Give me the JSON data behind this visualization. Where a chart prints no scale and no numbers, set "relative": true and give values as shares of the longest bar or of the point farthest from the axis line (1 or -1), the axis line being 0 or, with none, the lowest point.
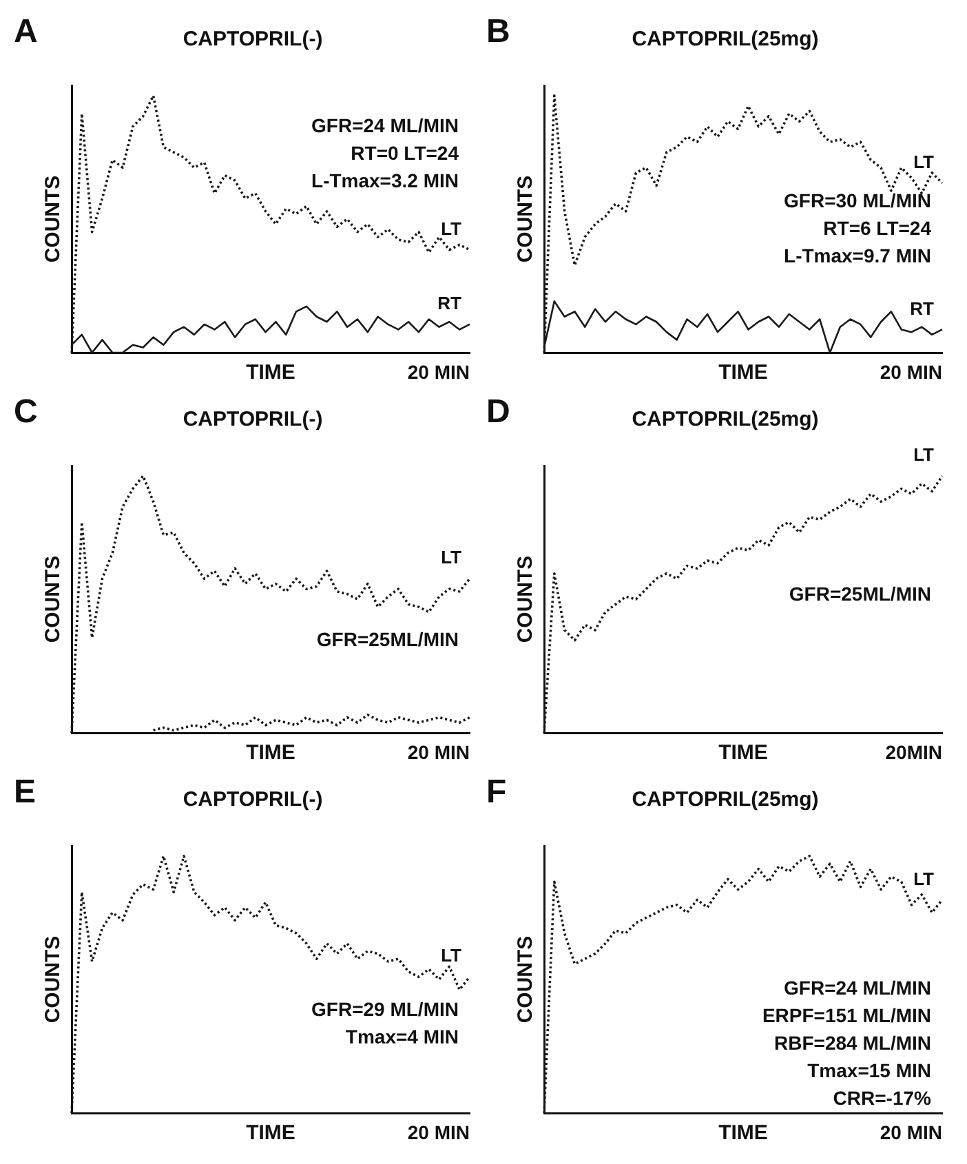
{
  "chart_data": [
    {
      "type": "line",
      "relative": true,
      "title": "CAPTOPRIL(-)",
      "xlabel": "TIME",
      "ylabel": "COUNTS",
      "annotations": [
        "A",
        "GFR=24 ML/MIN",
        "RT=0 LT=24",
        "L-Tmax=3.2 MIN",
        "20 MIN"
      ],
      "categories": [
        null,
        null,
        null,
        null,
        null,
        null,
        null,
        null,
        null,
        null,
        null,
        null,
        null,
        null,
        null,
        null,
        null,
        null,
        null,
        null,
        null,
        null,
        null,
        null,
        null,
        null,
        null,
        null,
        null,
        null,
        null,
        null,
        null,
        null,
        null,
        null,
        null,
        null,
        null,
        null
      ],
      "grid": false,
      "legend": false,
      "series": [
        {
          "name": "LT",
          "color": "#1a1a1a",
          "line_style": "dotted",
          "values": [
            0,
            0.93,
            0.47,
            0.6,
            0.75,
            0.72,
            0.88,
            0.92,
            1.0,
            0.8,
            0.78,
            0.76,
            0.72,
            0.74,
            0.62,
            0.69,
            0.67,
            0.6,
            0.62,
            0.55,
            0.5,
            0.56,
            0.54,
            0.57,
            0.5,
            0.55,
            0.49,
            0.52,
            0.47,
            0.5,
            0.45,
            0.48,
            0.44,
            0.43,
            0.47,
            0.39,
            0.45,
            0.4,
            0.42,
            0.4
          ]
        },
        {
          "name": "RT",
          "color": "#1a1a1a",
          "line_style": "solid",
          "values": [
            0.03,
            0.07,
            0.0,
            0.05,
            0.0,
            0.0,
            0.03,
            0.02,
            0.06,
            0.03,
            0.08,
            0.1,
            0.07,
            0.11,
            0.09,
            0.12,
            0.06,
            0.11,
            0.13,
            0.08,
            0.12,
            0.07,
            0.16,
            0.18,
            0.14,
            0.12,
            0.16,
            0.1,
            0.13,
            0.08,
            0.14,
            0.11,
            0.09,
            0.12,
            0.08,
            0.13,
            0.1,
            0.12,
            0.09,
            0.11
          ]
        }
      ]
    },
    {
      "type": "line",
      "relative": true,
      "title": "CAPTOPRIL(25mg)",
      "xlabel": "TIME",
      "ylabel": "COUNTS",
      "annotations": [
        "B",
        "GFR=30 ML/MIN",
        "RT=6 LT=24",
        "L-Tmax=9.7 MIN",
        "20 MIN"
      ],
      "categories": [
        null,
        null,
        null,
        null,
        null,
        null,
        null,
        null,
        null,
        null,
        null,
        null,
        null,
        null,
        null,
        null,
        null,
        null,
        null,
        null,
        null,
        null,
        null,
        null,
        null,
        null,
        null,
        null,
        null,
        null,
        null,
        null,
        null,
        null,
        null,
        null,
        null,
        null,
        null,
        null
      ],
      "grid": false,
      "legend": false,
      "series": [
        {
          "name": "LT",
          "color": "#1a1a1a",
          "line_style": "dotted",
          "values": [
            0,
            1.0,
            0.55,
            0.34,
            0.45,
            0.5,
            0.53,
            0.58,
            0.55,
            0.7,
            0.72,
            0.65,
            0.78,
            0.8,
            0.84,
            0.82,
            0.88,
            0.84,
            0.9,
            0.87,
            0.96,
            0.88,
            0.92,
            0.85,
            0.93,
            0.9,
            0.94,
            0.86,
            0.82,
            0.83,
            0.8,
            0.82,
            0.75,
            0.72,
            0.63,
            0.72,
            0.68,
            0.62,
            0.7,
            0.66
          ]
        },
        {
          "name": "RT",
          "color": "#1a1a1a",
          "line_style": "solid",
          "values": [
            0.02,
            0.2,
            0.14,
            0.16,
            0.1,
            0.17,
            0.12,
            0.16,
            0.13,
            0.11,
            0.14,
            0.12,
            0.08,
            0.05,
            0.13,
            0.1,
            0.15,
            0.08,
            0.12,
            0.16,
            0.09,
            0.12,
            0.14,
            0.1,
            0.15,
            0.12,
            0.09,
            0.13,
            0.0,
            0.1,
            0.13,
            0.11,
            0.06,
            0.12,
            0.16,
            0.09,
            0.08,
            0.1,
            0.07,
            0.09
          ]
        }
      ]
    },
    {
      "type": "line",
      "relative": true,
      "title": "CAPTOPRIL(-)",
      "xlabel": "TIME",
      "ylabel": "COUNTS",
      "annotations": [
        "C",
        "GFR=25ML/MIN",
        "20 MIN"
      ],
      "categories": [
        null,
        null,
        null,
        null,
        null,
        null,
        null,
        null,
        null,
        null,
        null,
        null,
        null,
        null,
        null,
        null,
        null,
        null,
        null,
        null,
        null,
        null,
        null,
        null,
        null,
        null,
        null,
        null,
        null,
        null,
        null,
        null,
        null,
        null,
        null,
        null,
        null,
        null,
        null,
        null
      ],
      "grid": false,
      "legend": false,
      "series": [
        {
          "name": "LT",
          "color": "#1a1a1a",
          "line_style": "dotted",
          "values": [
            0,
            0.82,
            0.37,
            0.6,
            0.7,
            0.88,
            0.95,
            1.0,
            0.9,
            0.77,
            0.78,
            0.7,
            0.66,
            0.6,
            0.63,
            0.57,
            0.64,
            0.58,
            0.62,
            0.56,
            0.58,
            0.55,
            0.6,
            0.56,
            0.57,
            0.63,
            0.55,
            0.54,
            0.52,
            0.58,
            0.49,
            0.53,
            0.56,
            0.5,
            0.49,
            0.47,
            0.53,
            0.56,
            0.55,
            0.6
          ]
        },
        {
          "color": "#1a1a1a",
          "line_style": "dotted",
          "values": [
            null,
            null,
            null,
            null,
            null,
            null,
            null,
            null,
            0.01,
            0.02,
            0.01,
            0.02,
            0.03,
            0.02,
            0.05,
            0.02,
            0.04,
            0.03,
            0.06,
            0.03,
            0.05,
            0.04,
            0.03,
            0.06,
            0.04,
            0.05,
            0.03,
            0.06,
            0.04,
            0.07,
            0.05,
            0.04,
            0.06,
            0.05,
            0.04,
            0.05,
            0.06,
            0.05,
            0.04,
            0.06
          ]
        }
      ]
    },
    {
      "type": "line",
      "relative": true,
      "title": "CAPTOPRIL(25mg)",
      "xlabel": "TIME",
      "ylabel": "COUNTS",
      "annotations": [
        "D",
        "GFR=25ML/MIN",
        "20MIN"
      ],
      "categories": [
        null,
        null,
        null,
        null,
        null,
        null,
        null,
        null,
        null,
        null,
        null,
        null,
        null,
        null,
        null,
        null,
        null,
        null,
        null,
        null,
        null,
        null,
        null,
        null,
        null,
        null,
        null,
        null,
        null,
        null,
        null,
        null,
        null,
        null,
        null,
        null,
        null,
        null,
        null,
        null
      ],
      "grid": false,
      "legend": false,
      "series": [
        {
          "name": "LT",
          "color": "#1a1a1a",
          "line_style": "dotted",
          "values": [
            0,
            0.62,
            0.4,
            0.36,
            0.42,
            0.4,
            0.47,
            0.5,
            0.53,
            0.52,
            0.56,
            0.6,
            0.62,
            0.6,
            0.65,
            0.64,
            0.67,
            0.66,
            0.7,
            0.72,
            0.71,
            0.75,
            0.73,
            0.8,
            0.82,
            0.78,
            0.84,
            0.83,
            0.86,
            0.88,
            0.91,
            0.88,
            0.93,
            0.9,
            0.92,
            0.95,
            0.93,
            0.97,
            0.94,
            1.0
          ]
        }
      ]
    },
    {
      "type": "line",
      "relative": true,
      "title": "CAPTOPRIL(-)",
      "xlabel": "TIME",
      "ylabel": "COUNTS",
      "annotations": [
        "E",
        "GFR=29 ML/MIN",
        "Tmax=4 MIN",
        "20 MIN"
      ],
      "categories": [
        null,
        null,
        null,
        null,
        null,
        null,
        null,
        null,
        null,
        null,
        null,
        null,
        null,
        null,
        null,
        null,
        null,
        null,
        null,
        null,
        null,
        null,
        null,
        null,
        null,
        null,
        null,
        null,
        null,
        null,
        null,
        null,
        null,
        null,
        null,
        null,
        null,
        null,
        null,
        null
      ],
      "grid": false,
      "legend": false,
      "series": [
        {
          "name": "LT",
          "color": "#1a1a1a",
          "line_style": "dotted",
          "values": [
            0,
            0.86,
            0.59,
            0.72,
            0.78,
            0.75,
            0.85,
            0.89,
            0.87,
            1.0,
            0.86,
            1.0,
            0.86,
            0.82,
            0.77,
            0.8,
            0.75,
            0.8,
            0.76,
            0.82,
            0.73,
            0.72,
            0.7,
            0.66,
            0.6,
            0.66,
            0.62,
            0.66,
            0.6,
            0.63,
            0.62,
            0.59,
            0.6,
            0.55,
            0.53,
            0.56,
            0.52,
            0.57,
            0.48,
            0.53
          ]
        }
      ]
    },
    {
      "type": "line",
      "relative": true,
      "title": "CAPTOPRIL(25mg)",
      "xlabel": "TIME",
      "ylabel": "COUNTS",
      "annotations": [
        "F",
        "GFR=24 ML/MIN",
        "ERPF=151 ML/MIN",
        "RBF=284 ML/MIN",
        "Tmax=15 MIN",
        "CRR=-17%",
        "20 MIN"
      ],
      "categories": [
        null,
        null,
        null,
        null,
        null,
        null,
        null,
        null,
        null,
        null,
        null,
        null,
        null,
        null,
        null,
        null,
        null,
        null,
        null,
        null,
        null,
        null,
        null,
        null,
        null,
        null,
        null,
        null,
        null,
        null,
        null,
        null,
        null,
        null,
        null,
        null,
        null,
        null,
        null,
        null
      ],
      "grid": false,
      "legend": false,
      "series": [
        {
          "name": "LT",
          "color": "#1a1a1a",
          "line_style": "dotted",
          "values": [
            0,
            0.9,
            0.7,
            0.58,
            0.6,
            0.62,
            0.66,
            0.71,
            0.7,
            0.74,
            0.76,
            0.78,
            0.8,
            0.81,
            0.78,
            0.83,
            0.8,
            0.86,
            0.91,
            0.87,
            0.9,
            0.95,
            0.9,
            0.96,
            0.94,
            0.98,
            1.0,
            0.92,
            0.97,
            0.9,
            0.98,
            0.88,
            0.95,
            0.87,
            0.92,
            0.9,
            0.81,
            0.85,
            0.78,
            0.83
          ]
        }
      ]
    }
  ]
}
